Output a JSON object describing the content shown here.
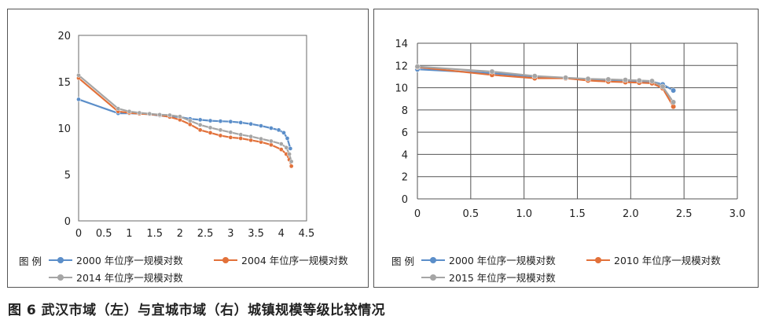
{
  "caption": "图 6 武汉市域（左）与宜城市域（右）城镇规模等级比较情况",
  "chart_data": [
    {
      "type": "line",
      "title": "",
      "xlabel": "",
      "ylabel": "",
      "xlim": [
        0,
        4.5
      ],
      "ylim": [
        0,
        20
      ],
      "xticks": [
        "0",
        "0.5",
        "1",
        "1.5",
        "2",
        "2.5",
        "3",
        "3.5",
        "4",
        "4.5"
      ],
      "yticks": [
        "0",
        "5",
        "10",
        "15",
        "20"
      ],
      "grid": false,
      "legend_label": "图 例",
      "legend_position": "bottom",
      "series": [
        {
          "name": "2000 年位序一规模对数",
          "color": "#5b8ec9",
          "points": [
            [
              0,
              13.1
            ],
            [
              0.78,
              11.6
            ],
            [
              1.0,
              11.6
            ],
            [
              1.2,
              11.55
            ],
            [
              1.4,
              11.5
            ],
            [
              1.6,
              11.35
            ],
            [
              1.8,
              11.25
            ],
            [
              2.0,
              11.2
            ],
            [
              2.2,
              11.0
            ],
            [
              2.4,
              10.9
            ],
            [
              2.6,
              10.8
            ],
            [
              2.8,
              10.75
            ],
            [
              3.0,
              10.7
            ],
            [
              3.2,
              10.6
            ],
            [
              3.4,
              10.45
            ],
            [
              3.6,
              10.25
            ],
            [
              3.8,
              10.0
            ],
            [
              3.95,
              9.8
            ],
            [
              4.05,
              9.5
            ],
            [
              4.12,
              8.9
            ],
            [
              4.18,
              7.8
            ]
          ]
        },
        {
          "name": "2004 年位序一规模对数",
          "color": "#e2713a",
          "points": [
            [
              0,
              15.4
            ],
            [
              0.78,
              11.8
            ],
            [
              1.0,
              11.65
            ],
            [
              1.2,
              11.55
            ],
            [
              1.4,
              11.5
            ],
            [
              1.6,
              11.4
            ],
            [
              1.8,
              11.2
            ],
            [
              2.0,
              10.9
            ],
            [
              2.2,
              10.4
            ],
            [
              2.4,
              9.8
            ],
            [
              2.6,
              9.5
            ],
            [
              2.8,
              9.2
            ],
            [
              3.0,
              9.0
            ],
            [
              3.2,
              8.9
            ],
            [
              3.4,
              8.7
            ],
            [
              3.6,
              8.5
            ],
            [
              3.8,
              8.2
            ],
            [
              4.0,
              7.7
            ],
            [
              4.1,
              7.2
            ],
            [
              4.16,
              6.6
            ],
            [
              4.2,
              5.9
            ]
          ]
        },
        {
          "name": "2014 年位序一规模对数",
          "color": "#a5a5a5",
          "points": [
            [
              0,
              15.7
            ],
            [
              0.78,
              12.1
            ],
            [
              1.0,
              11.8
            ],
            [
              1.2,
              11.65
            ],
            [
              1.4,
              11.55
            ],
            [
              1.6,
              11.45
            ],
            [
              1.8,
              11.4
            ],
            [
              2.0,
              11.25
            ],
            [
              2.2,
              10.8
            ],
            [
              2.4,
              10.35
            ],
            [
              2.6,
              10.05
            ],
            [
              2.8,
              9.8
            ],
            [
              3.0,
              9.55
            ],
            [
              3.2,
              9.3
            ],
            [
              3.4,
              9.1
            ],
            [
              3.6,
              8.85
            ],
            [
              3.8,
              8.6
            ],
            [
              4.0,
              8.3
            ],
            [
              4.1,
              7.9
            ],
            [
              4.16,
              7.2
            ],
            [
              4.2,
              6.4
            ]
          ]
        }
      ]
    },
    {
      "type": "line",
      "title": "",
      "xlabel": "",
      "ylabel": "",
      "xlim": [
        0,
        3.0
      ],
      "ylim": [
        0,
        14
      ],
      "xticks": [
        "0",
        "0.5",
        "1.0",
        "1.5",
        "2.0",
        "2.5",
        "3.0"
      ],
      "yticks": [
        "0",
        "2",
        "4",
        "6",
        "8",
        "10",
        "12",
        "14"
      ],
      "grid": true,
      "legend_label": "图 例",
      "legend_position": "bottom",
      "series": [
        {
          "name": "2000 年位序一规模对数",
          "color": "#5b8ec9",
          "points": [
            [
              0,
              11.65
            ],
            [
              0.7,
              11.3
            ],
            [
              1.1,
              11.0
            ],
            [
              1.39,
              10.85
            ],
            [
              1.6,
              10.75
            ],
            [
              1.79,
              10.7
            ],
            [
              1.95,
              10.65
            ],
            [
              2.08,
              10.6
            ],
            [
              2.2,
              10.55
            ],
            [
              2.3,
              10.3
            ],
            [
              2.4,
              9.75
            ]
          ]
        },
        {
          "name": "2010 年位序一规模对数",
          "color": "#e2713a",
          "points": [
            [
              0,
              11.85
            ],
            [
              0.7,
              11.15
            ],
            [
              1.1,
              10.85
            ],
            [
              1.39,
              10.85
            ],
            [
              1.6,
              10.65
            ],
            [
              1.79,
              10.55
            ],
            [
              1.95,
              10.5
            ],
            [
              2.08,
              10.45
            ],
            [
              2.2,
              10.4
            ],
            [
              2.3,
              9.95
            ],
            [
              2.4,
              8.3
            ]
          ]
        },
        {
          "name": "2015 年位序一规模对数",
          "color": "#a5a5a5",
          "points": [
            [
              0,
              11.9
            ],
            [
              0.7,
              11.45
            ],
            [
              1.1,
              11.05
            ],
            [
              1.39,
              10.9
            ],
            [
              1.6,
              10.8
            ],
            [
              1.79,
              10.75
            ],
            [
              1.95,
              10.7
            ],
            [
              2.08,
              10.65
            ],
            [
              2.2,
              10.6
            ],
            [
              2.3,
              10.1
            ],
            [
              2.4,
              8.7
            ]
          ]
        }
      ]
    }
  ]
}
